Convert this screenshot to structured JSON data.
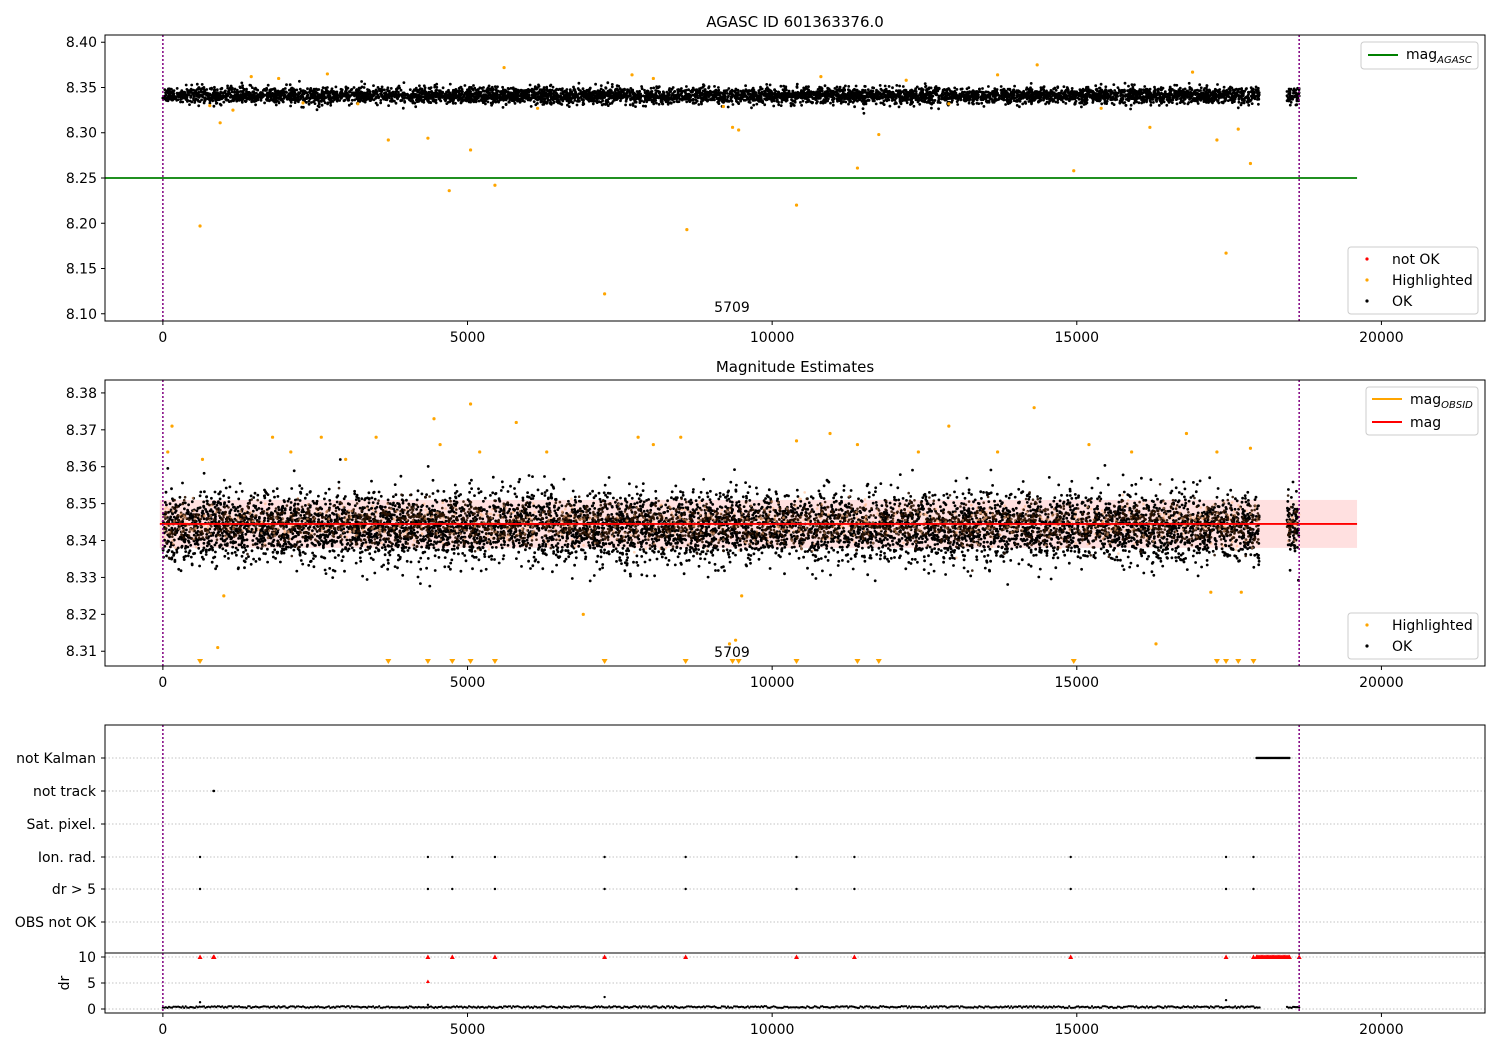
{
  "colors": {
    "ok": "#000000",
    "highlighted": "#ffa500",
    "not_ok": "#ff0000",
    "agasc_line": "#008000",
    "obsid_line": "#ffa500",
    "mean_line": "#ff0000",
    "obs_boundary": "#800080",
    "band": "#ff0000"
  },
  "chart_data": [
    {
      "type": "scatter",
      "title": "AGASC ID 601363376.0",
      "annotation": "5709",
      "xlim": [
        -950,
        21700
      ],
      "ylim": [
        8.092,
        8.408
      ],
      "xticks": [
        0,
        5000,
        10000,
        15000,
        20000
      ],
      "yticks": [
        8.1,
        8.15,
        8.2,
        8.25,
        8.3,
        8.35,
        8.4
      ],
      "ytick_labels": [
        "8.10",
        "8.15",
        "8.20",
        "8.25",
        "8.30",
        "8.35",
        "8.40"
      ],
      "vlines": [
        0,
        18650
      ],
      "hlines": [
        {
          "name": "mag_AGASC",
          "y": 8.25,
          "x": [
            -950,
            19600
          ]
        }
      ],
      "legend_top": {
        "placement": "top-right",
        "entries": [
          {
            "label": "mag",
            "sub": "AGASC",
            "kind": "line",
            "color": "#008000"
          }
        ]
      },
      "legend_bottom": {
        "placement": "bottom-right",
        "entries": [
          {
            "label": "not OK",
            "kind": "point",
            "color": "#ff0000"
          },
          {
            "label": "Highlighted",
            "kind": "point",
            "color": "#ffa500"
          },
          {
            "label": "OK",
            "kind": "point",
            "color": "#000000"
          }
        ]
      },
      "series": [
        {
          "name": "OK",
          "color": "#000000",
          "x_ranges": [
            [
              0,
              18000
            ],
            [
              18450,
              18650
            ]
          ],
          "y_center": 8.341,
          "y_spread": 0.008,
          "approx_points": 6000
        },
        {
          "name": "Highlighted",
          "color": "#ffa500",
          "x": [
            610,
            770,
            940,
            1150,
            1450,
            1900,
            2300,
            2700,
            3200,
            3700,
            4350,
            4700,
            5050,
            5450,
            5600,
            6150,
            7250,
            7700,
            8050,
            8600,
            9200,
            9350,
            9450,
            10400,
            10800,
            11400,
            11750,
            12200,
            12900,
            13700,
            14350,
            14950,
            15400,
            16200,
            16900,
            17300,
            17450,
            17650,
            17850
          ],
          "y": [
            8.197,
            8.33,
            8.311,
            8.325,
            8.362,
            8.36,
            8.333,
            8.365,
            8.332,
            8.292,
            8.294,
            8.236,
            8.281,
            8.242,
            8.372,
            8.327,
            8.122,
            8.364,
            8.36,
            8.193,
            8.329,
            8.306,
            8.303,
            8.22,
            8.362,
            8.261,
            8.298,
            8.358,
            8.332,
            8.364,
            8.375,
            8.258,
            8.327,
            8.306,
            8.367,
            8.292,
            8.167,
            8.304,
            8.266
          ]
        }
      ]
    },
    {
      "type": "scatter",
      "title": "Magnitude Estimates",
      "annotation": "5709",
      "xlim": [
        -950,
        21700
      ],
      "ylim": [
        8.306,
        8.3835
      ],
      "xticks": [
        0,
        5000,
        10000,
        15000,
        20000
      ],
      "yticks": [
        8.31,
        8.32,
        8.33,
        8.34,
        8.35,
        8.36,
        8.37,
        8.38
      ],
      "ytick_labels": [
        "8.31",
        "8.32",
        "8.33",
        "8.34",
        "8.35",
        "8.36",
        "8.37",
        "8.38"
      ],
      "vlines": [
        0,
        18650
      ],
      "mean": {
        "name": "mag",
        "y": 8.3445,
        "band": [
          8.338,
          8.351
        ],
        "x": [
          -50,
          19600
        ]
      },
      "obsid_segments_y": 8.3445,
      "legend_top": {
        "placement": "top-right",
        "entries": [
          {
            "label": "mag",
            "sub": "OBSID",
            "kind": "line",
            "color": "#ffa500"
          },
          {
            "label": "mag",
            "kind": "line",
            "color": "#ff0000"
          }
        ]
      },
      "legend_bottom": {
        "placement": "bottom-right",
        "entries": [
          {
            "label": "Highlighted",
            "kind": "point",
            "color": "#ffa500"
          },
          {
            "label": "OK",
            "kind": "point",
            "color": "#000000"
          }
        ]
      },
      "series": [
        {
          "name": "OK",
          "color": "#000000",
          "x_ranges": [
            [
              0,
              18000
            ],
            [
              18450,
              18650
            ]
          ],
          "y_center": 8.3435,
          "y_spread": 0.0085,
          "approx_points": 7000
        },
        {
          "name": "Highlighted",
          "color": "#ffa500",
          "x": [
            80,
            150,
            650,
            900,
            1000,
            1800,
            2100,
            2600,
            3000,
            3500,
            4450,
            4550,
            5050,
            5200,
            5800,
            6300,
            6900,
            7800,
            8050,
            8500,
            9300,
            9400,
            9500,
            10400,
            10950,
            11400,
            12400,
            12900,
            13700,
            14300,
            15200,
            15900,
            16300,
            16800,
            17200,
            17300,
            17700,
            17850
          ],
          "y": [
            8.364,
            8.371,
            8.362,
            8.311,
            8.325,
            8.368,
            8.364,
            8.368,
            8.362,
            8.368,
            8.373,
            8.366,
            8.377,
            8.364,
            8.372,
            8.364,
            8.32,
            8.368,
            8.366,
            8.368,
            8.312,
            8.313,
            8.325,
            8.367,
            8.369,
            8.366,
            8.364,
            8.371,
            8.364,
            8.376,
            8.366,
            8.364,
            8.312,
            8.369,
            8.326,
            8.364,
            8.326,
            8.365
          ]
        },
        {
          "name": "below-range",
          "color": "#ffa500",
          "marker": "triangle-down",
          "x": [
            610,
            3700,
            4350,
            4750,
            5050,
            5450,
            7250,
            8580,
            9350,
            9450,
            10400,
            11400,
            11750,
            14950,
            17300,
            17450,
            17650,
            17900
          ]
        }
      ]
    },
    {
      "type": "scatter",
      "flags_panel": {
        "xlim": [
          -950,
          21700
        ],
        "xticks": [
          0,
          5000,
          10000,
          15000,
          20000
        ],
        "vlines": [
          0,
          18650
        ],
        "rows": [
          {
            "label": "not Kalman",
            "x_range": [
              17950,
              18500
            ],
            "x": []
          },
          {
            "label": "not track",
            "x": [
              830,
              840
            ]
          },
          {
            "label": "Sat. pixel.",
            "x": []
          },
          {
            "label": "Ion. rad.",
            "x": [
              610,
              4350,
              4750,
              5450,
              7250,
              8580,
              10400,
              11350,
              14900,
              17450,
              17900
            ]
          },
          {
            "label": "dr > 5",
            "x": [
              610,
              4350,
              4750,
              5450,
              7250,
              8580,
              10400,
              11350,
              14900,
              17450,
              17900
            ]
          },
          {
            "label": "OBS not OK",
            "x": []
          }
        ]
      },
      "dr_panel": {
        "ylabel": "dr",
        "ylim": [
          -0.5,
          10.5
        ],
        "yticks": [
          0,
          5,
          10
        ],
        "ytick_labels": [
          "0",
          "5",
          "10"
        ],
        "ok_ranges": [
          [
            0,
            18000
          ],
          [
            18450,
            18650
          ]
        ],
        "ok_outliers": {
          "x": [
            610,
            4350,
            7250,
            17450
          ],
          "y": [
            1.3,
            0.8,
            2.3,
            1.7
          ]
        },
        "not_ok": {
          "color": "#ff0000",
          "x": [
            610,
            830,
            840,
            4350,
            4750,
            5450,
            7250,
            8580,
            10400,
            11350,
            14900,
            17450,
            17900,
            18650
          ],
          "y": [
            10,
            10,
            10,
            10,
            10,
            10,
            10,
            10,
            10,
            10,
            10,
            10,
            10,
            10
          ],
          "extra": {
            "x": [
              4350
            ],
            "y": [
              5.3
            ]
          },
          "dense_range": [
            17950,
            18500
          ]
        }
      }
    }
  ]
}
